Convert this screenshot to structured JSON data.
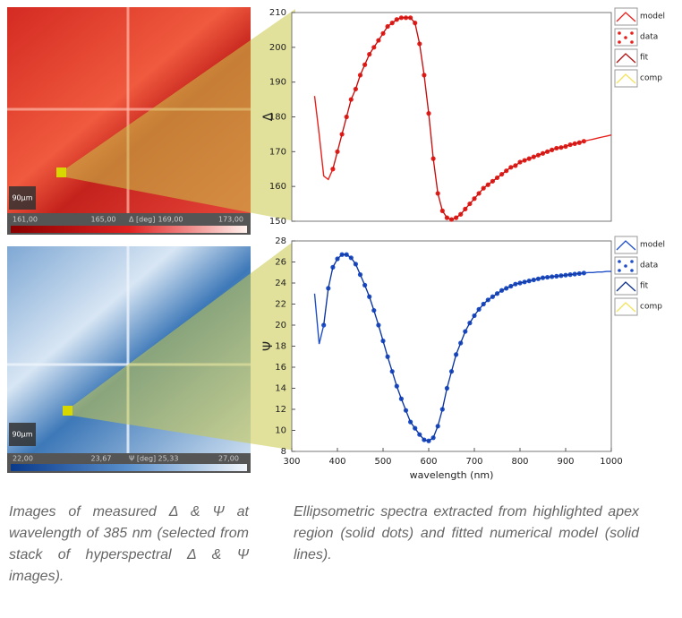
{
  "images": [
    {
      "scale_bar": "90µm",
      "colorbar_labels": [
        "161,00",
        "165,00",
        "Δ [deg]",
        "169,00",
        "173,00"
      ]
    },
    {
      "scale_bar": "90µm",
      "colorbar_labels": [
        "22,00",
        "23,67",
        "Ψ [deg]",
        "25,33",
        "27,00"
      ]
    }
  ],
  "chart_data": [
    {
      "type": "line",
      "ylabel": "Δ",
      "xlim": [
        300,
        1000
      ],
      "ylim": [
        150,
        210
      ],
      "yticks": [
        150,
        160,
        170,
        180,
        190,
        200,
        210
      ],
      "x": [
        350,
        360,
        370,
        380,
        390,
        400,
        410,
        420,
        430,
        440,
        450,
        460,
        470,
        480,
        490,
        500,
        510,
        520,
        530,
        540,
        550,
        560,
        570,
        580,
        590,
        600,
        610,
        620,
        630,
        640,
        650,
        660,
        670,
        680,
        690,
        700,
        710,
        720,
        730,
        740,
        750,
        760,
        770,
        780,
        790,
        800,
        810,
        820,
        830,
        840,
        850,
        860,
        870,
        880,
        890,
        900,
        910,
        920,
        930,
        940,
        950,
        960,
        970,
        980,
        990,
        1000
      ],
      "series": [
        {
          "name": "model",
          "color": "#e8201c",
          "kind": "line",
          "values": [
            186,
            175,
            163,
            162,
            165,
            170,
            175,
            180,
            185,
            188,
            192,
            195,
            198,
            200,
            202,
            204,
            206,
            207,
            208,
            208.5,
            208.5,
            208.5,
            207,
            201,
            192,
            181,
            168,
            158,
            153,
            151,
            150.5,
            151,
            152,
            153.5,
            155,
            156.5,
            158,
            159.5,
            160.5,
            161.5,
            162.5,
            163.5,
            164.5,
            165.5,
            166,
            167,
            167.5,
            168,
            168.5,
            169,
            169.5,
            170,
            170.5,
            171,
            171.2,
            171.5,
            172,
            172.3,
            172.6,
            173,
            173.3,
            173.6,
            173.9,
            174.2,
            174.5,
            174.8
          ]
        },
        {
          "name": "data",
          "color": "#e8201c",
          "kind": "points",
          "values": [
            null,
            null,
            null,
            null,
            165,
            170,
            175,
            180,
            185,
            188,
            192,
            195,
            198,
            200,
            202,
            204,
            206,
            207,
            208,
            208.5,
            208.5,
            208.5,
            207,
            201,
            192,
            181,
            168,
            158,
            153,
            151,
            150.5,
            151,
            152,
            153.5,
            155,
            156.5,
            158,
            159.5,
            160.5,
            161.5,
            162.5,
            163.5,
            164.5,
            165.5,
            166,
            167,
            167.5,
            168,
            168.5,
            169,
            169.5,
            170,
            170.5,
            171,
            171.2,
            171.5,
            172,
            172.3,
            172.6,
            173,
            null,
            null,
            null,
            null,
            null,
            null
          ]
        },
        {
          "name": "fit",
          "color": "#b01010",
          "kind": "fit",
          "values": [
            null,
            null,
            null,
            null,
            165,
            170,
            175,
            180,
            185,
            188,
            192,
            195,
            198,
            200,
            202,
            204,
            206,
            207,
            208,
            208.5,
            208.5,
            208.5,
            207,
            201,
            192,
            181,
            168,
            158,
            153,
            151,
            150.5,
            151,
            152,
            153.5,
            155,
            156.5,
            158,
            159.5,
            160.5,
            161.5,
            162.5,
            163.5,
            164.5,
            165.5,
            166,
            167,
            167.5,
            168,
            168.5,
            169,
            169.5,
            170,
            170.5,
            171,
            171.2,
            171.5,
            172,
            172.3,
            172.6,
            173,
            null,
            null,
            null,
            null,
            null,
            null
          ]
        },
        {
          "name": "comp",
          "color": "#f2e35c",
          "kind": "line",
          "values": [
            null,
            null,
            null,
            null,
            null,
            null,
            null,
            null,
            null,
            null,
            null,
            null,
            null,
            null,
            null,
            null,
            null,
            null,
            null,
            null,
            null,
            null,
            null,
            null,
            null,
            null,
            null,
            null,
            null,
            null,
            null,
            null,
            null,
            null,
            null,
            null,
            null,
            null,
            null,
            null,
            null,
            null,
            null,
            null,
            null,
            null,
            null,
            null,
            null,
            null,
            null,
            null,
            null,
            null,
            null,
            null,
            null,
            null,
            null,
            null,
            null,
            null,
            null,
            null,
            null,
            null
          ]
        }
      ]
    },
    {
      "type": "line",
      "ylabel": "Ψ",
      "xlabel": "wavelength (nm)",
      "xlim": [
        300,
        1000
      ],
      "xticks": [
        300,
        400,
        500,
        600,
        700,
        800,
        900,
        1000
      ],
      "ylim": [
        8,
        28
      ],
      "yticks": [
        8,
        10,
        12,
        14,
        16,
        18,
        20,
        22,
        24,
        26,
        28
      ],
      "x": [
        350,
        360,
        370,
        380,
        390,
        400,
        410,
        420,
        430,
        440,
        450,
        460,
        470,
        480,
        490,
        500,
        510,
        520,
        530,
        540,
        550,
        560,
        570,
        580,
        590,
        600,
        610,
        620,
        630,
        640,
        650,
        660,
        670,
        680,
        690,
        700,
        710,
        720,
        730,
        740,
        750,
        760,
        770,
        780,
        790,
        800,
        810,
        820,
        830,
        840,
        850,
        860,
        870,
        880,
        890,
        900,
        910,
        920,
        930,
        940,
        950,
        960,
        970,
        980,
        990,
        1000
      ],
      "series": [
        {
          "name": "model",
          "color": "#1f4fc8",
          "kind": "line",
          "values": [
            23,
            18.2,
            20,
            23.5,
            25.5,
            26.3,
            26.7,
            26.7,
            26.4,
            25.8,
            24.8,
            23.8,
            22.7,
            21.4,
            20,
            18.5,
            17,
            15.6,
            14.2,
            13,
            11.9,
            10.8,
            10.2,
            9.6,
            9.1,
            9,
            9.3,
            10.4,
            12,
            14,
            15.6,
            17.2,
            18.3,
            19.4,
            20.2,
            20.9,
            21.5,
            22,
            22.4,
            22.7,
            23,
            23.3,
            23.5,
            23.7,
            23.9,
            24,
            24.1,
            24.2,
            24.3,
            24.4,
            24.5,
            24.55,
            24.6,
            24.65,
            24.7,
            24.75,
            24.8,
            24.85,
            24.9,
            24.95,
            25,
            25,
            25.05,
            25.05,
            25.1,
            25.1
          ]
        },
        {
          "name": "data",
          "color": "#1f4fc8",
          "kind": "points",
          "values": [
            null,
            null,
            20,
            23.5,
            25.5,
            26.3,
            26.7,
            26.7,
            26.4,
            25.8,
            24.8,
            23.8,
            22.7,
            21.4,
            20,
            18.5,
            17,
            15.6,
            14.2,
            13,
            11.9,
            10.8,
            10.2,
            9.6,
            9.1,
            9,
            9.3,
            10.4,
            12,
            14,
            15.6,
            17.2,
            18.3,
            19.4,
            20.2,
            20.9,
            21.5,
            22,
            22.4,
            22.7,
            23,
            23.3,
            23.5,
            23.7,
            23.9,
            24,
            24.1,
            24.2,
            24.3,
            24.4,
            24.5,
            24.55,
            24.6,
            24.65,
            24.7,
            24.75,
            24.8,
            24.85,
            24.9,
            24.95,
            null,
            null,
            null,
            null,
            null,
            null
          ]
        },
        {
          "name": "fit",
          "color": "#0c2f8a",
          "kind": "fit",
          "values": [
            null,
            null,
            20,
            23.5,
            25.5,
            26.3,
            26.7,
            26.7,
            26.4,
            25.8,
            24.8,
            23.8,
            22.7,
            21.4,
            20,
            18.5,
            17,
            15.6,
            14.2,
            13,
            11.9,
            10.8,
            10.2,
            9.6,
            9.1,
            9,
            9.3,
            10.4,
            12,
            14,
            15.6,
            17.2,
            18.3,
            19.4,
            20.2,
            20.9,
            21.5,
            22,
            22.4,
            22.7,
            23,
            23.3,
            23.5,
            23.7,
            23.9,
            24,
            24.1,
            24.2,
            24.3,
            24.4,
            24.5,
            24.55,
            24.6,
            24.65,
            24.7,
            24.75,
            24.8,
            24.85,
            24.9,
            24.95,
            null,
            null,
            null,
            null,
            null,
            null
          ]
        },
        {
          "name": "comp",
          "color": "#f2e35c",
          "kind": "line",
          "values": [
            null,
            null,
            null,
            null,
            null,
            null,
            null,
            null,
            null,
            null,
            null,
            null,
            null,
            null,
            null,
            null,
            null,
            null,
            null,
            null,
            null,
            null,
            null,
            null,
            null,
            null,
            null,
            null,
            null,
            null,
            null,
            null,
            null,
            null,
            null,
            null,
            null,
            null,
            null,
            null,
            null,
            null,
            null,
            null,
            null,
            null,
            null,
            null,
            null,
            null,
            null,
            null,
            null,
            null,
            null,
            null,
            null,
            null,
            null,
            null,
            null,
            null,
            null,
            null,
            null,
            null
          ]
        }
      ]
    }
  ],
  "captions": [
    "Images of measured Δ & Ψ at wavelength of 385 nm (selected from stack of hyperspectral Δ & Ψ images).",
    "Ellipsometric spectra extracted from highlighted apex region (solid dots) and fitted numerical model (solid lines)."
  ]
}
